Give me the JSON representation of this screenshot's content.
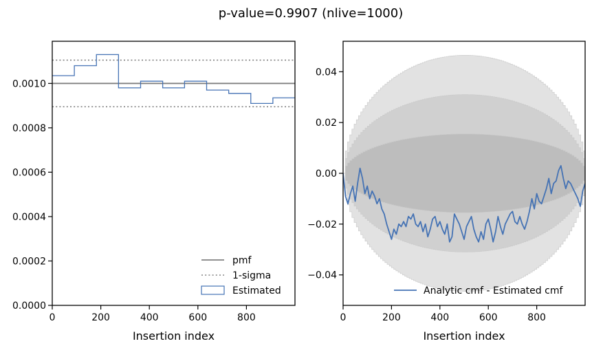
{
  "title": "p-value=0.9907 (nlive=1000)",
  "colors": {
    "estimated": "#4472b4",
    "pmf": "#808080",
    "sigma_band_1": "#bdbdbd",
    "sigma_band_2": "#d0d0d0",
    "sigma_band_3": "#e2e2e2"
  },
  "chart_data": [
    {
      "type": "step",
      "xlabel": "Insertion index",
      "ylabel": "",
      "xlim": [
        0,
        1000
      ],
      "ylim": [
        0,
        0.00119
      ],
      "xticks": [
        0,
        200,
        400,
        600,
        800
      ],
      "xtick_labels": [
        "0",
        "200",
        "400",
        "600",
        "800"
      ],
      "yticks": [
        0,
        0.0002,
        0.0004,
        0.0006,
        0.0008,
        0.001
      ],
      "ytick_labels": [
        "0.0000",
        "0.0002",
        "0.0004",
        "0.0006",
        "0.0008",
        "0.0010"
      ],
      "legend_position": "lower-right",
      "legend": [
        "pmf",
        "1-sigma",
        "Estimated"
      ],
      "series": [
        {
          "name": "pmf",
          "style": "solid",
          "y": 0.001
        },
        {
          "name": "1-sigma",
          "style": "dotted",
          "y": [
            0.000895,
            0.001105
          ]
        },
        {
          "name": "Estimated",
          "style": "step",
          "bin_edges": [
            0,
            91,
            182,
            273,
            364,
            455,
            545,
            636,
            727,
            818,
            909,
            1000
          ],
          "values": [
            0.001035,
            0.00108,
            0.00113,
            0.00098,
            0.00101,
            0.00098,
            0.00101,
            0.00097,
            0.000955,
            0.00091,
            0.000935
          ]
        }
      ]
    },
    {
      "type": "line",
      "xlabel": "Insertion index",
      "ylabel": "",
      "xlim": [
        0,
        1000
      ],
      "ylim": [
        -0.052,
        0.052
      ],
      "xticks": [
        0,
        200,
        400,
        600,
        800
      ],
      "xtick_labels": [
        "0",
        "200",
        "400",
        "600",
        "800"
      ],
      "yticks": [
        -0.04,
        -0.02,
        0,
        0.02,
        0.04
      ],
      "ytick_labels": [
        "−0.04",
        "−0.02",
        "0.00",
        "0.02",
        "0.04"
      ],
      "legend_position": "lower-right",
      "legend": [
        "Analytic cmf - Estimated cmf"
      ],
      "bands": [
        {
          "sigma": 3,
          "half_width_at_center": 0.0465
        },
        {
          "sigma": 2,
          "half_width_at_center": 0.031
        },
        {
          "sigma": 1,
          "half_width_at_center": 0.0155
        }
      ],
      "series": [
        {
          "name": "Analytic cmf - Estimated cmf",
          "x": [
            0,
            10,
            20,
            30,
            40,
            50,
            60,
            70,
            80,
            90,
            100,
            110,
            120,
            130,
            140,
            150,
            160,
            170,
            180,
            190,
            200,
            210,
            220,
            230,
            240,
            250,
            260,
            270,
            280,
            290,
            300,
            310,
            320,
            330,
            340,
            350,
            360,
            370,
            380,
            390,
            400,
            410,
            420,
            430,
            440,
            450,
            460,
            470,
            480,
            490,
            500,
            510,
            520,
            530,
            540,
            550,
            560,
            570,
            580,
            590,
            600,
            610,
            620,
            630,
            640,
            650,
            660,
            670,
            680,
            690,
            700,
            710,
            720,
            730,
            740,
            750,
            760,
            770,
            780,
            790,
            800,
            810,
            820,
            830,
            840,
            850,
            860,
            870,
            880,
            890,
            900,
            910,
            920,
            930,
            940,
            950,
            960,
            970,
            980,
            990,
            1000
          ],
          "y": [
            0.0,
            -0.009,
            -0.012,
            -0.008,
            -0.005,
            -0.011,
            -0.004,
            0.002,
            -0.002,
            -0.008,
            -0.005,
            -0.01,
            -0.007,
            -0.009,
            -0.012,
            -0.01,
            -0.014,
            -0.016,
            -0.02,
            -0.023,
            -0.026,
            -0.022,
            -0.024,
            -0.02,
            -0.021,
            -0.019,
            -0.021,
            -0.017,
            -0.018,
            -0.016,
            -0.02,
            -0.021,
            -0.019,
            -0.023,
            -0.02,
            -0.025,
            -0.022,
            -0.018,
            -0.017,
            -0.021,
            -0.019,
            -0.022,
            -0.024,
            -0.02,
            -0.027,
            -0.025,
            -0.016,
            -0.018,
            -0.02,
            -0.023,
            -0.026,
            -0.021,
            -0.019,
            -0.017,
            -0.022,
            -0.025,
            -0.027,
            -0.023,
            -0.026,
            -0.02,
            -0.018,
            -0.022,
            -0.027,
            -0.023,
            -0.017,
            -0.021,
            -0.024,
            -0.02,
            -0.018,
            -0.016,
            -0.015,
            -0.019,
            -0.02,
            -0.017,
            -0.02,
            -0.022,
            -0.019,
            -0.015,
            -0.01,
            -0.014,
            -0.008,
            -0.011,
            -0.012,
            -0.009,
            -0.006,
            -0.002,
            -0.008,
            -0.004,
            -0.003,
            0.001,
            0.003,
            -0.002,
            -0.006,
            -0.003,
            -0.004,
            -0.006,
            -0.008,
            -0.01,
            -0.013,
            -0.007,
            -0.004
          ]
        }
      ]
    }
  ]
}
